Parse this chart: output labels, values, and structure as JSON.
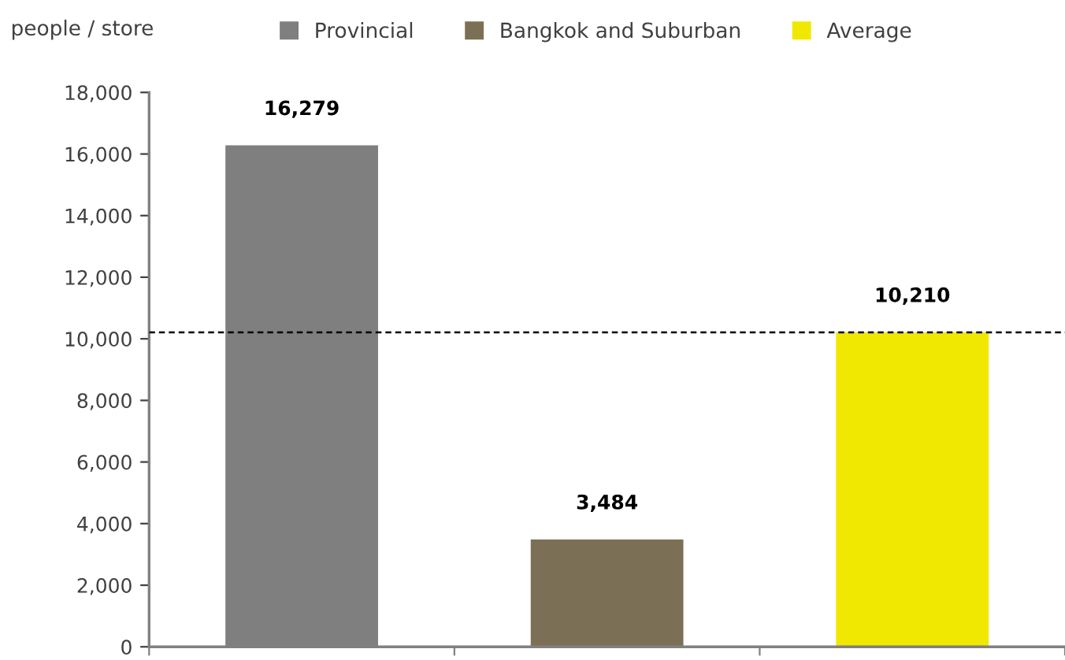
{
  "chart_data": {
    "type": "bar",
    "ylabel": "people / store",
    "categories": [
      null,
      null,
      null
    ],
    "series": [
      {
        "name": "Provincial",
        "color": "#7f7f7f",
        "values": [
          16279,
          null,
          null
        ],
        "value_labels": [
          "16,279",
          null,
          null
        ]
      },
      {
        "name": "Bangkok and Suburban",
        "color": "#7b7055",
        "values": [
          null,
          3484,
          null
        ],
        "value_labels": [
          null,
          "3,484",
          null
        ]
      },
      {
        "name": "Average",
        "color": "#f0e800",
        "values": [
          null,
          null,
          10210
        ],
        "value_labels": [
          null,
          null,
          "10,210"
        ]
      }
    ],
    "ylim": [
      0,
      18000
    ],
    "yticks": [
      0,
      {
        "value": 2000,
        "label": "2,000"
      },
      {
        "value": 4000,
        "label": "4,000"
      },
      {
        "value": 6000,
        "label": "6,000"
      },
      {
        "value": 8000,
        "label": "8,000"
      },
      {
        "value": 10000,
        "label": "10,000"
      },
      {
        "value": 12000,
        "label": "12,000"
      },
      {
        "value": 14000,
        "label": "14,000"
      },
      {
        "value": 16000,
        "label": "16,000"
      },
      {
        "value": 18000,
        "label": "18,000"
      }
    ],
    "ref_lines": [
      {
        "axis": "y",
        "value": 10210,
        "color": "#000000",
        "line_style": "dashed"
      }
    ],
    "grid": false,
    "legend": "top"
  }
}
